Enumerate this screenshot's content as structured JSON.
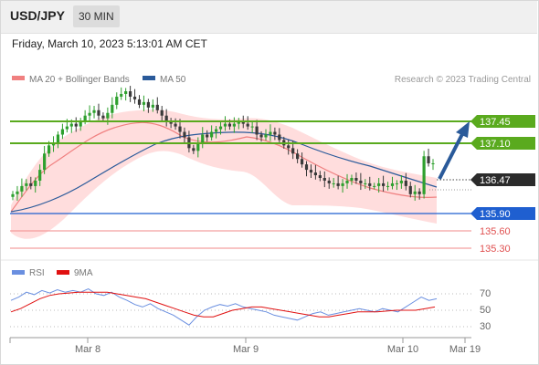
{
  "header": {
    "pair": "USD/JPY",
    "timeframe": "30 MIN"
  },
  "datetime": "Friday, March 10, 2023 5:13:01 AM CET",
  "legend": {
    "ma20": {
      "label": "MA 20 + Bollinger Bands",
      "color": "#f08080"
    },
    "ma50": {
      "label": "MA 50",
      "color": "#2a5a9a"
    }
  },
  "credit": "Research © 2023 Trading Central",
  "colors": {
    "up": "#2ea02e",
    "down": "#3a3a3a",
    "resistance": "#5aaa1e",
    "support": "#1f5fd0",
    "support_weak": "#f08a8a",
    "arrow": "#2a5a9a",
    "bollinger": "#ffd9d9"
  },
  "chart_data": [
    {
      "type": "line",
      "title": "USD/JPY 30 MIN",
      "x_ticks": [
        "Mar 8",
        "Mar 9",
        "Mar 10",
        "Mar 19"
      ],
      "levels": [
        {
          "label": "137.45",
          "value": 137.45,
          "kind": "resistance"
        },
        {
          "label": "137.10",
          "value": 137.1,
          "kind": "resistance"
        },
        {
          "label": "136.47",
          "value": 136.47,
          "kind": "current"
        },
        {
          "label": "135.90",
          "value": 135.9,
          "kind": "support"
        },
        {
          "label": "135.60",
          "value": 135.6,
          "kind": "support-weak"
        },
        {
          "label": "135.30",
          "value": 135.3,
          "kind": "support-weak"
        }
      ],
      "ylim": [
        134.6,
        137.8
      ],
      "series": [
        {
          "name": "USD/JPY",
          "values": [
            135.9,
            135.95,
            136.05,
            136.1,
            136.05,
            136.15,
            136.35,
            136.65,
            136.8,
            136.85,
            137.0,
            137.1,
            137.15,
            137.2,
            137.15,
            137.25,
            137.35,
            137.4,
            137.45,
            137.35,
            137.3,
            137.4,
            137.55,
            137.7,
            137.75,
            137.8,
            137.7,
            137.65,
            137.55,
            137.6,
            137.5,
            137.55,
            137.45,
            137.35,
            137.25,
            137.2,
            137.15,
            137.05,
            136.95,
            136.75,
            136.7,
            136.85,
            137.0,
            136.95,
            137.05,
            137.1,
            137.15,
            137.2,
            137.15,
            137.2,
            137.25,
            137.2,
            137.15,
            137.15,
            137.0,
            136.95,
            137.0,
            137.05,
            137.0,
            136.9,
            136.8,
            136.75,
            136.65,
            136.55,
            136.45,
            136.35,
            136.3,
            136.25,
            136.2,
            136.15,
            136.1,
            136.1,
            136.05,
            136.1,
            136.15,
            136.2,
            136.15,
            136.1,
            136.1,
            136.05,
            136.05,
            136.1,
            136.05,
            136.05,
            136.1,
            136.1,
            136.15,
            136.05,
            135.9,
            135.95,
            135.9,
            136.6,
            136.47,
            136.47
          ]
        },
        {
          "name": "MA 20",
          "values": [
            136.25,
            136.3,
            136.4,
            136.55,
            136.7,
            136.85,
            137.0,
            137.1,
            137.2,
            137.25,
            137.25,
            137.2,
            137.15,
            137.05,
            137.0,
            136.95,
            136.9,
            136.9,
            136.95,
            137.0,
            137.05,
            137.05,
            137.0,
            136.9,
            136.75,
            136.6,
            136.45,
            136.35,
            136.25,
            136.2,
            136.15,
            136.15,
            136.1,
            136.1,
            136.1,
            136.1,
            136.15,
            136.2
          ]
        },
        {
          "name": "MA 50",
          "values": [
            135.9,
            135.95,
            136.05,
            136.2,
            136.35,
            136.5,
            136.65,
            136.8,
            136.9,
            137.0,
            137.05,
            137.1,
            137.15,
            137.15,
            137.1,
            137.1,
            137.05,
            137.0,
            136.95,
            136.85,
            136.75,
            136.65,
            136.55,
            136.45,
            136.4,
            136.35,
            136.3
          ]
        }
      ]
    },
    {
      "type": "line",
      "title": "",
      "legend": [
        {
          "label": "RSI",
          "color": "#6a8fe0"
        },
        {
          "label": "9MA",
          "color": "#e01010"
        }
      ],
      "y_ticks": [
        "70",
        "50",
        "30"
      ],
      "ylim": [
        20,
        80
      ],
      "series": [
        {
          "name": "RSI",
          "values": [
            60,
            64,
            70,
            67,
            72,
            69,
            73,
            70,
            72,
            70,
            74,
            68,
            66,
            70,
            64,
            60,
            55,
            52,
            56,
            50,
            46,
            42,
            36,
            30,
            40,
            48,
            52,
            55,
            53,
            56,
            52,
            50,
            48,
            46,
            42,
            40,
            38,
            36,
            40,
            44,
            46,
            42,
            44,
            46,
            48,
            50,
            48,
            46,
            50,
            48,
            46,
            52,
            58,
            64,
            60,
            62
          ]
        },
        {
          "name": "9MA",
          "values": [
            46,
            50,
            56,
            62,
            66,
            68,
            69,
            70,
            70,
            70,
            70,
            68,
            66,
            64,
            62,
            58,
            54,
            50,
            46,
            42,
            40,
            40,
            44,
            48,
            50,
            52,
            52,
            50,
            48,
            46,
            44,
            42,
            40,
            40,
            42,
            44,
            46,
            46,
            46,
            47,
            48,
            48,
            48,
            50,
            52
          ]
        }
      ]
    }
  ]
}
